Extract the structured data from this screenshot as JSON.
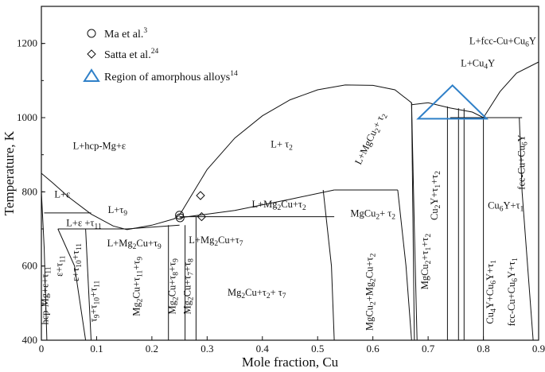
{
  "chart_data": {
    "type": "line",
    "title": "",
    "xlabel": "Mole fraction, Cu",
    "ylabel": "Temperature, K",
    "xlim": [
      0,
      0.9
    ],
    "ylim": [
      400,
      1300
    ],
    "xticks": [
      "0",
      "0.1",
      "0.2",
      "0.3",
      "0.4",
      "0.5",
      "0.6",
      "0.7",
      "0.8",
      "0.9"
    ],
    "yticks": [
      "400",
      "600",
      "800",
      "1000",
      "1200"
    ],
    "legend_position": "top-left",
    "legend": [
      {
        "marker": "circle",
        "label": "Ma et al.",
        "sup": "3"
      },
      {
        "marker": "diamond",
        "label": "Satta et al.",
        "sup": "24"
      },
      {
        "marker": "triangle",
        "label": "Region of amorphous alloys",
        "sup": "14",
        "color": "#2f80c8"
      }
    ],
    "series": [
      {
        "label": "Ma et al.",
        "marker": "circle",
        "points": [
          {
            "x": 0.25,
            "y": 737
          },
          {
            "x": 0.251,
            "y": 730
          }
        ]
      },
      {
        "label": "Satta et al.",
        "marker": "diamond",
        "points": [
          {
            "x": 0.288,
            "y": 790
          },
          {
            "x": 0.29,
            "y": 733
          }
        ]
      },
      {
        "label": "Region of amorphous alloys",
        "marker": "triangle",
        "color": "#2f80c8",
        "points": [
          {
            "x": 0.682,
            "y": 997
          },
          {
            "x": 0.744,
            "y": 1087
          },
          {
            "x": 0.806,
            "y": 997
          }
        ]
      }
    ],
    "boundaries": [
      {
        "name": "liquidus-mg-rich",
        "x": [
          0.0,
          0.02,
          0.05,
          0.09,
          0.13,
          0.155
        ],
        "y": [
          850,
          825,
          785,
          740,
          708,
          698
        ]
      },
      {
        "name": "liquidus-mid",
        "x": [
          0.155,
          0.2,
          0.24,
          0.25
        ],
        "y": [
          698,
          710,
          727,
          737
        ]
      },
      {
        "name": "liquidus-dome",
        "x": [
          0.25,
          0.3,
          0.35,
          0.4,
          0.45,
          0.5,
          0.55,
          0.6,
          0.64,
          0.67
        ],
        "y": [
          737,
          860,
          945,
          1005,
          1048,
          1075,
          1088,
          1087,
          1075,
          1040
        ]
      },
      {
        "name": "liquidus-cu-rich",
        "x": [
          0.67,
          0.7,
          0.74,
          0.78,
          0.8
        ],
        "y": [
          1035,
          1040,
          1026,
          1015,
          1000
        ]
      },
      {
        "name": "liquidus-cu4y",
        "x": [
          0.8,
          0.83,
          0.86,
          0.9
        ],
        "y": [
          1000,
          1070,
          1120,
          1150
        ]
      },
      {
        "name": "solvus-hcp",
        "x": [
          0.0,
          0.005,
          0.01
        ],
        "y": [
          800,
          650,
          400
        ]
      },
      {
        "name": "l-tau2-left",
        "x": [
          0.25,
          0.35,
          0.45,
          0.53
        ],
        "y": [
          730,
          750,
          780,
          805
        ]
      },
      {
        "name": "eutectic-740",
        "x": [
          0.005,
          0.09
        ],
        "y": [
          743,
          743
        ]
      },
      {
        "name": "eutectic-700",
        "x": [
          0.03,
          0.155,
          0.25
        ],
        "y": [
          700,
          700,
          710
        ]
      },
      {
        "name": "peritectic-733",
        "x": [
          0.25,
          0.53
        ],
        "y": [
          733,
          733
        ]
      },
      {
        "name": "tau2-left",
        "x": [
          0.51,
          0.525,
          0.53
        ],
        "y": [
          805,
          600,
          400
        ]
      },
      {
        "name": "tau2-right",
        "x": [
          0.645,
          0.66,
          0.67
        ],
        "y": [
          805,
          600,
          400
        ]
      },
      {
        "name": "isotherm-805",
        "x": [
          0.53,
          0.645
        ],
        "y": [
          805,
          805
        ]
      },
      {
        "name": "isotherm-1000",
        "x": [
          0.74,
          0.87
        ],
        "y": [
          1000,
          1000
        ]
      },
      {
        "name": "mgcu2-left",
        "x": [
          0.67,
          0.675,
          0.68
        ],
        "y": [
          1040,
          700,
          400
        ]
      },
      {
        "name": "mgcu2-right",
        "x": [
          0.67,
          0.675
        ],
        "y": [
          1040,
          400
        ]
      },
      {
        "name": "cu2y",
        "x": [
          0.735,
          0.735
        ],
        "y": [
          1030,
          400
        ]
      },
      {
        "name": "cu6y-1",
        "x": [
          0.755,
          0.755
        ],
        "y": [
          1025,
          400
        ]
      },
      {
        "name": "cu6y-2",
        "x": [
          0.765,
          0.765
        ],
        "y": [
          1025,
          400
        ]
      },
      {
        "name": "cu4y",
        "x": [
          0.8,
          0.8
        ],
        "y": [
          1000,
          400
        ]
      },
      {
        "name": "fcc-cu",
        "x": [
          0.865,
          0.87,
          0.89
        ],
        "y": [
          1000,
          800,
          400
        ]
      },
      {
        "name": "mg2cu-1",
        "x": [
          0.23,
          0.23
        ],
        "y": [
          710,
          400
        ]
      },
      {
        "name": "mg2cu-2",
        "x": [
          0.26,
          0.26
        ],
        "y": [
          710,
          400
        ]
      },
      {
        "name": "mg2cu-3",
        "x": [
          0.28,
          0.28
        ],
        "y": [
          733,
          400
        ]
      },
      {
        "name": "tau11-region",
        "x": [
          0.03,
          0.06,
          0.08
        ],
        "y": [
          700,
          600,
          400
        ]
      },
      {
        "name": "tau9-region",
        "x": [
          0.08,
          0.09
        ],
        "y": [
          700,
          400
        ]
      }
    ],
    "annotations": [
      {
        "runs": [
          {
            "t": "L+fcc-Cu+Cu"
          },
          {
            "t": "6",
            "sub": true
          },
          {
            "t": "Y"
          }
        ],
        "x": 0.835,
        "y": 1198,
        "rot": 0,
        "anchor": "middle"
      },
      {
        "runs": [
          {
            "t": "L+Cu"
          },
          {
            "t": "4",
            "sub": true
          },
          {
            "t": "Y"
          }
        ],
        "x": 0.79,
        "y": 1138,
        "rot": 0,
        "anchor": "middle"
      },
      {
        "runs": [
          {
            "t": "L+hcp-Mg+ε"
          }
        ],
        "x": 0.105,
        "y": 915,
        "rot": 0,
        "anchor": "middle"
      },
      {
        "runs": [
          {
            "t": "L+ τ"
          },
          {
            "t": "2",
            "sub": true
          }
        ],
        "x": 0.435,
        "y": 920,
        "rot": 0,
        "anchor": "middle"
      },
      {
        "runs": [
          {
            "t": "L+MgCu"
          },
          {
            "t": "2",
            "sub": true
          },
          {
            "t": "+ τ"
          },
          {
            "t": "2",
            "sub": true
          }
        ],
        "x": 0.6,
        "y": 940,
        "rot": -64,
        "anchor": "middle"
      },
      {
        "runs": [
          {
            "t": "fcc-Cu+Cu"
          },
          {
            "t": "6",
            "sub": true
          },
          {
            "t": "Y"
          }
        ],
        "x": 0.875,
        "y": 880,
        "rot": -90,
        "anchor": "middle"
      },
      {
        "runs": [
          {
            "t": "L+ε"
          }
        ],
        "x": 0.038,
        "y": 785,
        "rot": 0,
        "anchor": "middle"
      },
      {
        "runs": [
          {
            "t": "L+τ"
          },
          {
            "t": "9",
            "sub": true
          }
        ],
        "x": 0.138,
        "y": 743,
        "rot": 0,
        "anchor": "middle"
      },
      {
        "runs": [
          {
            "t": "L+Mg"
          },
          {
            "t": "2",
            "sub": true
          },
          {
            "t": "Cu+τ"
          },
          {
            "t": "2",
            "sub": true
          }
        ],
        "x": 0.43,
        "y": 758,
        "rot": 0,
        "anchor": "middle"
      },
      {
        "runs": [
          {
            "t": "MgCu"
          },
          {
            "t": "2",
            "sub": true
          },
          {
            "t": "+ τ"
          },
          {
            "t": "2",
            "sub": true
          }
        ],
        "x": 0.6,
        "y": 733,
        "rot": 0,
        "anchor": "middle"
      },
      {
        "runs": [
          {
            "t": "Cu"
          },
          {
            "t": "2",
            "sub": true
          },
          {
            "t": "Y+τ"
          },
          {
            "t": "1",
            "sub": true
          },
          {
            "t": "+τ"
          },
          {
            "t": "2",
            "sub": true
          }
        ],
        "x": 0.717,
        "y": 790,
        "rot": -90,
        "anchor": "middle"
      },
      {
        "runs": [
          {
            "t": "Cu"
          },
          {
            "t": "6",
            "sub": true
          },
          {
            "t": "Y+τ"
          },
          {
            "t": "1",
            "sub": true
          }
        ],
        "x": 0.808,
        "y": 755,
        "rot": 0,
        "anchor": "start"
      },
      {
        "runs": [
          {
            "t": "L+ε +τ"
          },
          {
            "t": "11",
            "sub": true
          }
        ],
        "x": 0.045,
        "y": 708,
        "rot": 0,
        "anchor": "start"
      },
      {
        "runs": [
          {
            "t": "L+Mg"
          },
          {
            "t": "2",
            "sub": true
          },
          {
            "t": "Cu+τ"
          },
          {
            "t": "9",
            "sub": true
          }
        ],
        "x": 0.168,
        "y": 653,
        "rot": 0,
        "anchor": "middle"
      },
      {
        "runs": [
          {
            "t": "L+Mg"
          },
          {
            "t": "2",
            "sub": true
          },
          {
            "t": "Cu+τ"
          },
          {
            "t": "7",
            "sub": true
          }
        ],
        "x": 0.316,
        "y": 661,
        "rot": 0,
        "anchor": "middle"
      },
      {
        "runs": [
          {
            "t": "Mg"
          },
          {
            "t": "2",
            "sub": true
          },
          {
            "t": "Cu+τ"
          },
          {
            "t": "2",
            "sub": true
          },
          {
            "t": "+ τ"
          },
          {
            "t": "7",
            "sub": true
          }
        ],
        "x": 0.39,
        "y": 520,
        "rot": 0,
        "anchor": "middle"
      },
      {
        "runs": [
          {
            "t": "hcp-Mg+ε+τ"
          },
          {
            "t": "11",
            "sub": true
          }
        ],
        "x": 0.012,
        "y": 520,
        "rot": -90,
        "anchor": "middle"
      },
      {
        "runs": [
          {
            "t": "ε+τ"
          },
          {
            "t": "11",
            "sub": true
          }
        ],
        "x": 0.038,
        "y": 600,
        "rot": -90,
        "anchor": "middle"
      },
      {
        "runs": [
          {
            "t": "ε+τ"
          },
          {
            "t": "10",
            "sub": true
          },
          {
            "t": "+τ"
          },
          {
            "t": "11",
            "sub": true
          }
        ],
        "x": 0.068,
        "y": 610,
        "rot": -90,
        "anchor": "middle"
      },
      {
        "runs": [
          {
            "t": "τ"
          },
          {
            "t": "9",
            "sub": true
          },
          {
            "t": "+τ"
          },
          {
            "t": "10",
            "sub": true
          },
          {
            "t": "+τ"
          },
          {
            "t": "11",
            "sub": true
          }
        ],
        "x": 0.1,
        "y": 505,
        "rot": -90,
        "anchor": "middle"
      },
      {
        "runs": [
          {
            "t": "Mg"
          },
          {
            "t": "2",
            "sub": true
          },
          {
            "t": "Cu+τ"
          },
          {
            "t": "11",
            "sub": true
          },
          {
            "t": "+τ"
          },
          {
            "t": "9",
            "sub": true
          }
        ],
        "x": 0.178,
        "y": 545,
        "rot": -90,
        "anchor": "middle"
      },
      {
        "runs": [
          {
            "t": "Mg"
          },
          {
            "t": "2",
            "sub": true
          },
          {
            "t": "Cu+τ"
          },
          {
            "t": "8",
            "sub": true
          },
          {
            "t": "+τ"
          },
          {
            "t": "9",
            "sub": true
          }
        ],
        "x": 0.243,
        "y": 545,
        "rot": -90,
        "anchor": "middle"
      },
      {
        "runs": [
          {
            "t": "Mg"
          },
          {
            "t": "2",
            "sub": true
          },
          {
            "t": "Cu+τ"
          },
          {
            "t": "7",
            "sub": true
          },
          {
            "t": "+τ"
          },
          {
            "t": "8",
            "sub": true
          }
        ],
        "x": 0.27,
        "y": 545,
        "rot": -90,
        "anchor": "middle"
      },
      {
        "runs": [
          {
            "t": "MgCu"
          },
          {
            "t": "2",
            "sub": true
          },
          {
            "t": "+Mg"
          },
          {
            "t": "2",
            "sub": true
          },
          {
            "t": "Cu+τ"
          },
          {
            "t": "2",
            "sub": true
          }
        ],
        "x": 0.6,
        "y": 530,
        "rot": -90,
        "anchor": "middle"
      },
      {
        "runs": [
          {
            "t": "MgCu"
          },
          {
            "t": "2",
            "sub": true
          },
          {
            "t": "+τ"
          },
          {
            "t": "1",
            "sub": true
          },
          {
            "t": "+τ"
          },
          {
            "t": "2",
            "sub": true
          }
        ],
        "x": 0.7,
        "y": 612,
        "rot": -90,
        "anchor": "middle"
      },
      {
        "runs": [
          {
            "t": "Cu"
          },
          {
            "t": "4",
            "sub": true
          },
          {
            "t": "Y+Cu"
          },
          {
            "t": "6",
            "sub": true
          },
          {
            "t": "Y+τ"
          },
          {
            "t": "1",
            "sub": true
          }
        ],
        "x": 0.818,
        "y": 530,
        "rot": -90,
        "anchor": "middle"
      },
      {
        "runs": [
          {
            "t": "fcc-Cu+Cu"
          },
          {
            "t": "6",
            "sub": true
          },
          {
            "t": "Y+τ"
          },
          {
            "t": "1",
            "sub": true
          }
        ],
        "x": 0.857,
        "y": 530,
        "rot": -90,
        "anchor": "middle"
      }
    ]
  }
}
